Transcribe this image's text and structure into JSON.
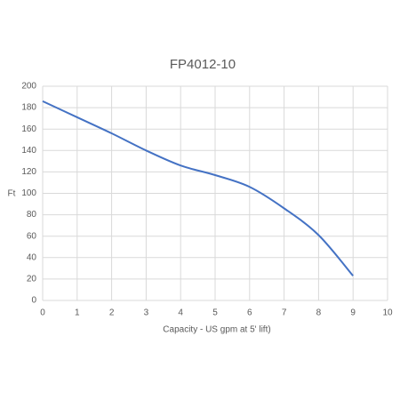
{
  "chart_data": {
    "type": "line",
    "title": "FP4012-10",
    "x_label": "Capacity - US gpm at 5' lift)",
    "y_label": "Ft",
    "x": [
      0,
      1,
      2,
      3,
      4,
      5,
      6,
      7,
      8,
      9
    ],
    "series": [
      {
        "name": "FP4012-10",
        "color": "#4472c4",
        "values": [
          186,
          171,
          156,
          140,
          126,
          117,
          106,
          86,
          61,
          23
        ]
      }
    ],
    "xlim": [
      0,
      10
    ],
    "xticks": [
      0,
      1,
      2,
      3,
      4,
      5,
      6,
      7,
      8,
      9,
      10
    ],
    "ylim": [
      0,
      200
    ],
    "yticks": [
      0,
      20,
      40,
      60,
      80,
      100,
      120,
      140,
      160,
      180,
      200
    ],
    "grid": true,
    "legend": false
  }
}
